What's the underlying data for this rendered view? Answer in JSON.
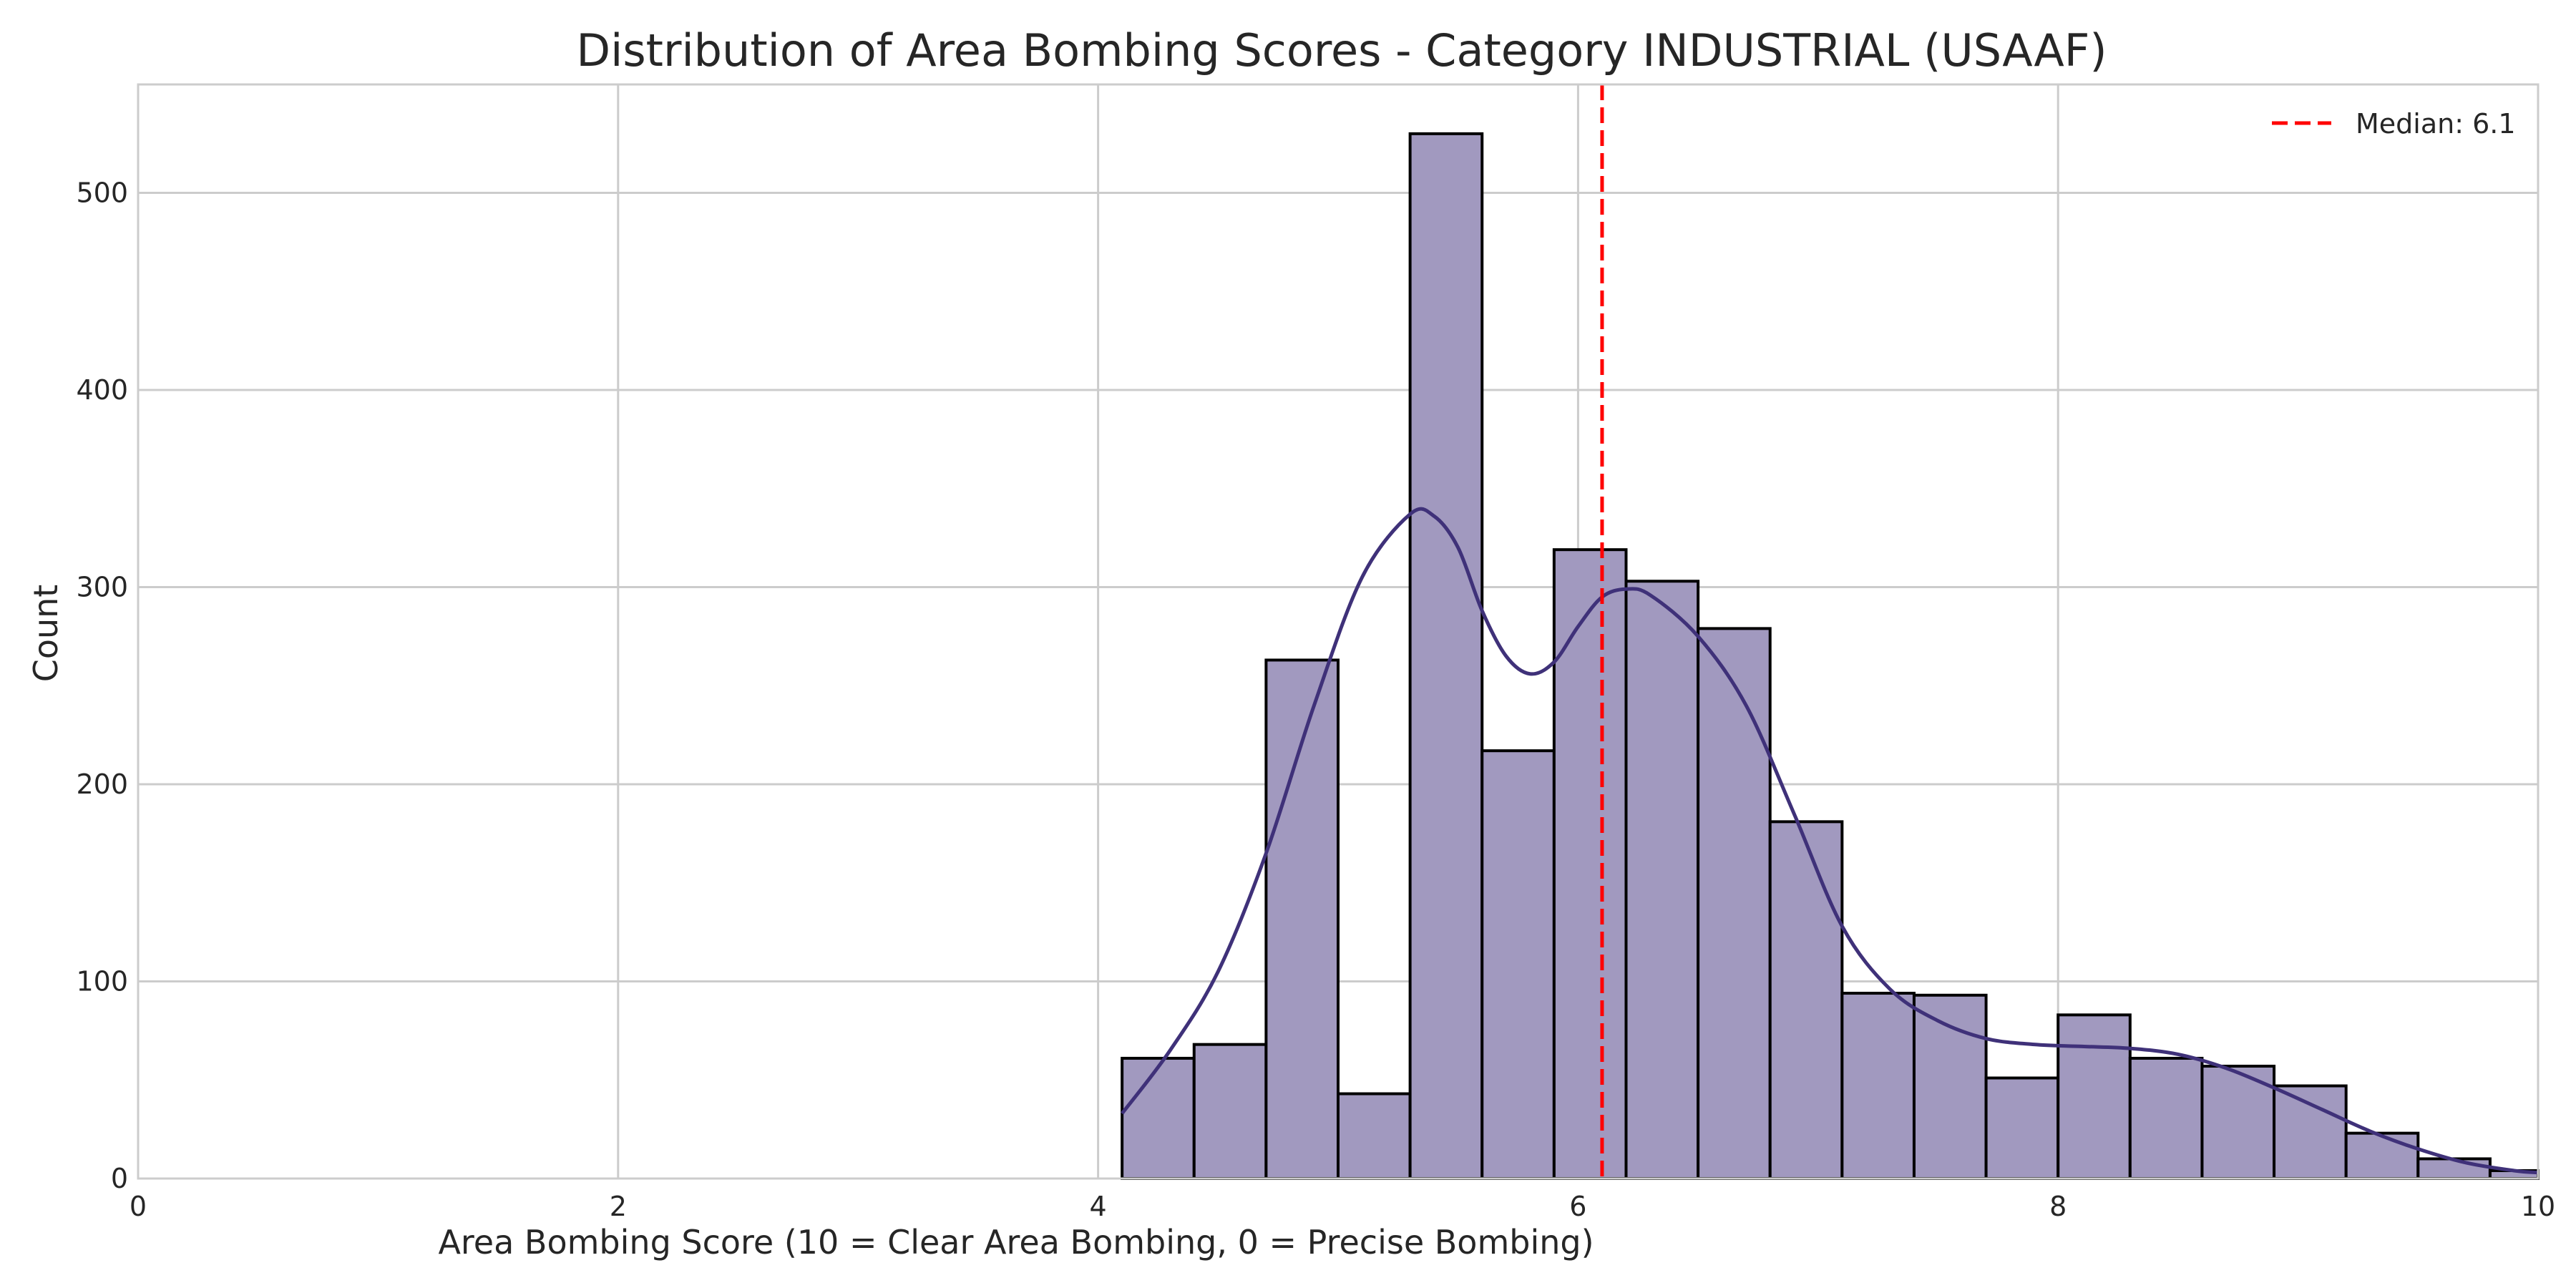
{
  "chart_data": {
    "type": "bar",
    "title": "Distribution of Area Bombing Scores - Category INDUSTRIAL (USAAF)",
    "xlabel": "Area Bombing Score (10 = Clear Area Bombing, 0 = Precise Bombing)",
    "ylabel": "Count",
    "xlim": [
      0,
      10
    ],
    "ylim": [
      0,
      555
    ],
    "xticks": [
      0,
      2,
      4,
      6,
      8,
      10
    ],
    "yticks": [
      0,
      100,
      200,
      300,
      400,
      500
    ],
    "grid": true,
    "bins": [
      {
        "x0": 4.1,
        "x1": 4.4,
        "count": 61
      },
      {
        "x0": 4.4,
        "x1": 4.7,
        "count": 68
      },
      {
        "x0": 4.7,
        "x1": 5.0,
        "count": 263
      },
      {
        "x0": 5.0,
        "x1": 5.3,
        "count": 43
      },
      {
        "x0": 5.3,
        "x1": 5.6,
        "count": 530
      },
      {
        "x0": 5.6,
        "x1": 5.9,
        "count": 217
      },
      {
        "x0": 5.9,
        "x1": 6.2,
        "count": 319
      },
      {
        "x0": 6.2,
        "x1": 6.5,
        "count": 303
      },
      {
        "x0": 6.5,
        "x1": 6.8,
        "count": 279
      },
      {
        "x0": 6.8,
        "x1": 7.1,
        "count": 181
      },
      {
        "x0": 7.1,
        "x1": 7.4,
        "count": 94
      },
      {
        "x0": 7.4,
        "x1": 7.7,
        "count": 93
      },
      {
        "x0": 7.7,
        "x1": 8.0,
        "count": 51
      },
      {
        "x0": 8.0,
        "x1": 8.3,
        "count": 83
      },
      {
        "x0": 8.3,
        "x1": 8.6,
        "count": 61
      },
      {
        "x0": 8.6,
        "x1": 8.9,
        "count": 57
      },
      {
        "x0": 8.9,
        "x1": 9.2,
        "count": 47
      },
      {
        "x0": 9.2,
        "x1": 9.5,
        "count": 23
      },
      {
        "x0": 9.5,
        "x1": 9.8,
        "count": 10
      },
      {
        "x0": 9.8,
        "x1": 10.1,
        "count": 4
      }
    ],
    "kde": {
      "x": [
        4.1,
        4.3,
        4.5,
        4.7,
        4.9,
        5.1,
        5.3,
        5.4,
        5.5,
        5.6,
        5.7,
        5.8,
        5.9,
        6.0,
        6.1,
        6.2,
        6.3,
        6.5,
        6.7,
        6.9,
        7.1,
        7.3,
        7.5,
        7.7,
        7.9,
        8.1,
        8.3,
        8.5,
        8.7,
        8.9,
        9.1,
        9.3,
        9.5,
        9.7,
        9.9,
        10.0
      ],
      "y": [
        33,
        65,
        105,
        165,
        240,
        305,
        337,
        336,
        320,
        288,
        265,
        256,
        262,
        280,
        295,
        299,
        296,
        275,
        240,
        185,
        128,
        96,
        80,
        71,
        68,
        67,
        66,
        63,
        56,
        46,
        35,
        24,
        15,
        8,
        4,
        3
      ]
    },
    "median": {
      "value": 6.1,
      "label": "Median: 6.1",
      "color": "#ff0000"
    },
    "colors": {
      "bar_fill": "#a199bf",
      "bar_edge": "#000000",
      "kde_line": "#3f3179",
      "grid": "#cccccc",
      "frame": "#cccccc"
    },
    "legend_position": "top-right"
  }
}
